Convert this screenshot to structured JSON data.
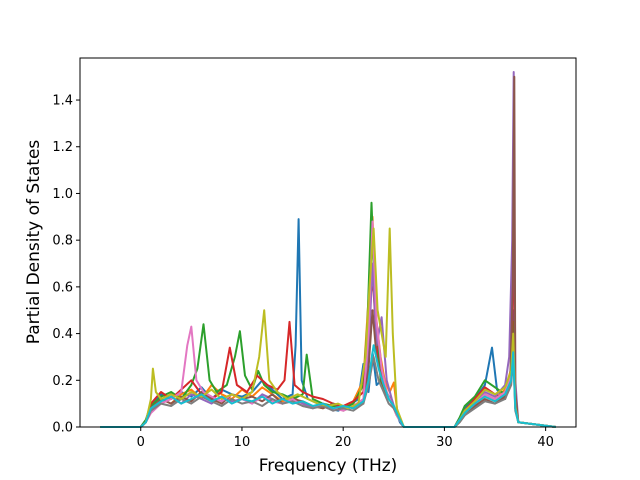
{
  "chart_data": {
    "type": "line",
    "title": "",
    "xlabel": "Frequency (THz)",
    "ylabel": "Partial Density of States",
    "xlim": [
      -6,
      43
    ],
    "ylim": [
      0,
      1.58
    ],
    "xticks": [
      0,
      10,
      20,
      30,
      40
    ],
    "yticks": [
      0.0,
      0.2,
      0.4,
      0.6,
      0.8,
      1.0,
      1.2,
      1.4
    ],
    "xtick_labels": [
      "0",
      "10",
      "20",
      "30",
      "40"
    ],
    "ytick_labels": [
      "0.0",
      "0.2",
      "0.4",
      "0.6",
      "0.8",
      "1.0",
      "1.2",
      "1.4"
    ],
    "grid": false,
    "legend": "none",
    "series_colors": [
      "#1f77b4",
      "#ff7f0e",
      "#2ca02c",
      "#d62728",
      "#9467bd",
      "#8c564b",
      "#e377c2",
      "#7f7f7f",
      "#bcbd22",
      "#17becf"
    ],
    "series": [
      {
        "color": "#1f77b4",
        "x": [
          -4,
          -0.5,
          0.0,
          0.5,
          1.0,
          2.0,
          3.0,
          4.0,
          5.0,
          6.0,
          7.0,
          8.0,
          9.0,
          10.0,
          11.0,
          12.0,
          13.0,
          14.0,
          15.0,
          15.3,
          15.6,
          15.9,
          16.5,
          17.5,
          18.5,
          19.5,
          20.5,
          21.5,
          22.0,
          22.5,
          22.9,
          23.3,
          23.8,
          24.3,
          24.8,
          25.3,
          25.6,
          26,
          31,
          31.5,
          32,
          33,
          34,
          34.7,
          35.2,
          36,
          36.6,
          36.8,
          37.0,
          37.3,
          41
        ],
        "y": [
          0,
          0,
          0,
          0.03,
          0.1,
          0.14,
          0.12,
          0.15,
          0.13,
          0.17,
          0.12,
          0.16,
          0.14,
          0.13,
          0.15,
          0.2,
          0.16,
          0.12,
          0.14,
          0.35,
          0.89,
          0.2,
          0.12,
          0.1,
          0.08,
          0.07,
          0.09,
          0.12,
          0.27,
          0.15,
          0.32,
          0.18,
          0.2,
          0.14,
          0.1,
          0.06,
          0.02,
          0,
          0,
          0.04,
          0.08,
          0.12,
          0.18,
          0.34,
          0.16,
          0.12,
          0.2,
          0.5,
          0.1,
          0.02,
          0
        ]
      },
      {
        "color": "#ff7f0e",
        "x": [
          -4,
          -0.5,
          0.0,
          0.5,
          1.0,
          2.0,
          3.0,
          4.0,
          5.0,
          6.0,
          7.0,
          8.0,
          9.0,
          10.0,
          11.0,
          12.0,
          13.0,
          14.0,
          15.0,
          16.0,
          17.0,
          18.0,
          19.0,
          20.0,
          21.0,
          22.0,
          22.5,
          22.9,
          23.3,
          23.7,
          24.1,
          24.6,
          25.0,
          25.4,
          26,
          31,
          31.5,
          32,
          33,
          34,
          35,
          36,
          36.6,
          36.8,
          37.0,
          37.3,
          41
        ],
        "y": [
          0,
          0,
          0,
          0.02,
          0.08,
          0.12,
          0.1,
          0.14,
          0.16,
          0.12,
          0.18,
          0.14,
          0.12,
          0.16,
          0.13,
          0.17,
          0.14,
          0.11,
          0.13,
          0.1,
          0.09,
          0.08,
          0.1,
          0.08,
          0.11,
          0.2,
          0.55,
          0.9,
          0.45,
          0.3,
          0.2,
          0.15,
          0.19,
          0.05,
          0,
          0,
          0.03,
          0.06,
          0.1,
          0.14,
          0.12,
          0.16,
          0.25,
          0.4,
          0.08,
          0.02,
          0
        ]
      },
      {
        "color": "#2ca02c",
        "x": [
          -4,
          -0.5,
          0.0,
          0.5,
          1.0,
          2.0,
          3.0,
          4.0,
          5.0,
          5.6,
          6.2,
          6.8,
          7.5,
          8.5,
          9.3,
          9.8,
          10.3,
          11.0,
          11.6,
          12.2,
          13.0,
          14.0,
          15.0,
          16.0,
          16.4,
          17.0,
          18.0,
          19.0,
          20.0,
          21.0,
          22.0,
          22.4,
          22.8,
          23.2,
          23.7,
          24.2,
          24.7,
          25.2,
          26,
          31,
          31.5,
          32,
          33,
          34,
          35,
          36,
          36.6,
          36.8,
          37.0,
          37.3,
          41
        ],
        "y": [
          0,
          0,
          0,
          0.03,
          0.09,
          0.13,
          0.15,
          0.12,
          0.18,
          0.25,
          0.44,
          0.2,
          0.15,
          0.18,
          0.3,
          0.41,
          0.22,
          0.16,
          0.24,
          0.18,
          0.15,
          0.14,
          0.12,
          0.14,
          0.31,
          0.12,
          0.1,
          0.09,
          0.08,
          0.1,
          0.18,
          0.45,
          0.96,
          0.5,
          0.2,
          0.15,
          0.12,
          0.06,
          0,
          0,
          0.04,
          0.09,
          0.13,
          0.2,
          0.17,
          0.14,
          0.22,
          0.45,
          0.1,
          0.02,
          0
        ]
      },
      {
        "color": "#d62728",
        "x": [
          -4,
          -0.5,
          0.0,
          0.5,
          1.0,
          2.0,
          3.0,
          4.0,
          5.0,
          6.0,
          7.0,
          8.0,
          8.8,
          9.5,
          10.5,
          11.5,
          12.5,
          13.5,
          14.2,
          14.7,
          15.2,
          16.0,
          17.0,
          18.0,
          19.0,
          20.0,
          21.0,
          22.0,
          22.4,
          22.7,
          23.0,
          23.4,
          23.8,
          24.3,
          24.8,
          25.3,
          26,
          31,
          31.5,
          32,
          33,
          34,
          35,
          36,
          36.6,
          36.8,
          37.0,
          37.3,
          41
        ],
        "y": [
          0,
          0,
          0,
          0.02,
          0.1,
          0.15,
          0.12,
          0.16,
          0.2,
          0.14,
          0.12,
          0.15,
          0.34,
          0.18,
          0.15,
          0.22,
          0.18,
          0.16,
          0.2,
          0.45,
          0.18,
          0.15,
          0.13,
          0.12,
          0.1,
          0.09,
          0.11,
          0.15,
          0.35,
          0.62,
          0.58,
          0.28,
          0.2,
          0.14,
          0.1,
          0.05,
          0,
          0,
          0.03,
          0.07,
          0.12,
          0.17,
          0.14,
          0.12,
          0.2,
          0.9,
          0.12,
          0.02,
          0
        ]
      },
      {
        "color": "#9467bd",
        "x": [
          -4,
          -0.5,
          0.0,
          0.5,
          1.0,
          2.0,
          3.0,
          4.0,
          5.0,
          6.0,
          7.0,
          8.0,
          9.0,
          10.0,
          11.0,
          12.0,
          13.0,
          14.0,
          15.0,
          16.0,
          17.0,
          18.0,
          19.0,
          20.0,
          21.0,
          22.0,
          22.5,
          22.9,
          23.3,
          23.8,
          24.3,
          24.8,
          25.3,
          26,
          31,
          31.5,
          32,
          33,
          34,
          35,
          36,
          36.4,
          36.7,
          36.85,
          37.0,
          37.3,
          41
        ],
        "y": [
          0,
          0,
          0,
          0.02,
          0.07,
          0.11,
          0.13,
          0.1,
          0.14,
          0.12,
          0.1,
          0.13,
          0.11,
          0.12,
          0.1,
          0.14,
          0.12,
          0.1,
          0.12,
          0.1,
          0.08,
          0.1,
          0.07,
          0.09,
          0.08,
          0.12,
          0.3,
          0.7,
          0.35,
          0.47,
          0.2,
          0.12,
          0.05,
          0,
          0,
          0.03,
          0.06,
          0.1,
          0.15,
          0.13,
          0.18,
          0.3,
          0.8,
          1.52,
          0.2,
          0.02,
          0
        ]
      },
      {
        "color": "#8c564b",
        "x": [
          -4,
          -0.5,
          0.0,
          0.5,
          1.0,
          2.0,
          3.0,
          4.0,
          5.0,
          6.0,
          7.0,
          8.0,
          9.0,
          10.0,
          11.0,
          12.0,
          13.0,
          14.0,
          15.0,
          16.0,
          17.0,
          18.0,
          19.0,
          20.0,
          21.0,
          22.0,
          22.5,
          22.9,
          23.3,
          23.8,
          24.3,
          24.8,
          25.3,
          26,
          31,
          31.5,
          32,
          33,
          34,
          35,
          36,
          36.5,
          36.75,
          36.9,
          37.0,
          37.3,
          41
        ],
        "y": [
          0,
          0,
          0,
          0.02,
          0.08,
          0.12,
          0.1,
          0.13,
          0.11,
          0.15,
          0.12,
          0.1,
          0.14,
          0.12,
          0.13,
          0.11,
          0.14,
          0.1,
          0.12,
          0.11,
          0.09,
          0.08,
          0.1,
          0.07,
          0.09,
          0.1,
          0.25,
          0.5,
          0.3,
          0.22,
          0.15,
          0.1,
          0.05,
          0,
          0,
          0.02,
          0.05,
          0.09,
          0.12,
          0.1,
          0.13,
          0.2,
          0.6,
          1.5,
          0.15,
          0.02,
          0
        ]
      },
      {
        "color": "#e377c2",
        "x": [
          -4,
          -0.5,
          0.0,
          0.5,
          1.0,
          2.0,
          3.0,
          4.0,
          4.6,
          5.0,
          5.5,
          6.2,
          7.0,
          8.0,
          9.0,
          10.0,
          11.0,
          12.0,
          13.0,
          14.0,
          15.0,
          16.0,
          17.0,
          18.0,
          19.0,
          20.0,
          21.0,
          22.0,
          22.5,
          22.9,
          23.3,
          23.8,
          24.3,
          24.8,
          25.3,
          26,
          31,
          31.5,
          32,
          33,
          34,
          35,
          36,
          36.6,
          36.8,
          37.0,
          37.3,
          41
        ],
        "y": [
          0,
          0,
          0,
          0.02,
          0.06,
          0.1,
          0.12,
          0.15,
          0.35,
          0.43,
          0.2,
          0.15,
          0.13,
          0.11,
          0.14,
          0.12,
          0.1,
          0.13,
          0.11,
          0.1,
          0.12,
          0.09,
          0.08,
          0.1,
          0.08,
          0.07,
          0.09,
          0.12,
          0.4,
          0.88,
          0.45,
          0.25,
          0.15,
          0.1,
          0.05,
          0,
          0,
          0.03,
          0.06,
          0.1,
          0.14,
          0.12,
          0.15,
          0.22,
          0.35,
          0.08,
          0.02,
          0
        ]
      },
      {
        "color": "#7f7f7f",
        "x": [
          -4,
          -0.5,
          0.0,
          0.5,
          1.0,
          2.0,
          3.0,
          4.0,
          5.0,
          6.0,
          7.0,
          8.0,
          9.0,
          10.0,
          11.0,
          12.0,
          13.0,
          14.0,
          15.0,
          16.0,
          17.0,
          18.0,
          19.0,
          20.0,
          21.0,
          22.0,
          22.5,
          23.0,
          23.5,
          24.0,
          24.5,
          25.0,
          25.5,
          26,
          31,
          31.5,
          32,
          33,
          34,
          35,
          36,
          36.6,
          36.8,
          37.0,
          37.3,
          41
        ],
        "y": [
          0,
          0,
          0,
          0.02,
          0.07,
          0.1,
          0.09,
          0.12,
          0.1,
          0.13,
          0.11,
          0.09,
          0.12,
          0.1,
          0.11,
          0.09,
          0.12,
          0.1,
          0.11,
          0.09,
          0.08,
          0.09,
          0.07,
          0.08,
          0.07,
          0.1,
          0.18,
          0.3,
          0.2,
          0.15,
          0.1,
          0.08,
          0.04,
          0,
          0,
          0.02,
          0.05,
          0.08,
          0.11,
          0.1,
          0.12,
          0.18,
          0.3,
          0.07,
          0.02,
          0
        ]
      },
      {
        "color": "#bcbd22",
        "x": [
          -4,
          -0.5,
          0.0,
          0.5,
          1.0,
          1.2,
          1.5,
          2.0,
          3.0,
          4.0,
          5.0,
          6.0,
          7.0,
          8.0,
          9.0,
          10.0,
          11.0,
          11.7,
          12.2,
          12.7,
          13.5,
          14.5,
          15.5,
          16.5,
          17.5,
          18.5,
          19.5,
          20.5,
          21.5,
          22.2,
          22.6,
          23.0,
          23.4,
          23.8,
          24.2,
          24.6,
          24.9,
          25.3,
          26,
          31,
          31.5,
          32,
          33,
          34,
          35,
          36,
          36.6,
          36.8,
          37.0,
          37.3,
          41
        ],
        "y": [
          0,
          0,
          0,
          0.02,
          0.12,
          0.25,
          0.15,
          0.12,
          0.14,
          0.12,
          0.15,
          0.13,
          0.16,
          0.12,
          0.14,
          0.12,
          0.15,
          0.3,
          0.5,
          0.2,
          0.15,
          0.12,
          0.14,
          0.12,
          0.1,
          0.09,
          0.1,
          0.08,
          0.1,
          0.3,
          0.6,
          0.85,
          0.5,
          0.4,
          0.3,
          0.85,
          0.4,
          0.08,
          0,
          0,
          0.03,
          0.07,
          0.11,
          0.16,
          0.14,
          0.17,
          0.24,
          0.4,
          0.09,
          0.02,
          0
        ]
      },
      {
        "color": "#17becf",
        "x": [
          -4,
          -0.5,
          0.0,
          0.5,
          1.0,
          2.0,
          3.0,
          4.0,
          5.0,
          6.0,
          7.0,
          8.0,
          9.0,
          10.0,
          11.0,
          12.0,
          13.0,
          14.0,
          15.0,
          16.0,
          17.0,
          18.0,
          19.0,
          20.0,
          21.0,
          22.0,
          22.5,
          23.0,
          23.5,
          24.0,
          24.5,
          25.0,
          25.5,
          26,
          31,
          31.5,
          32,
          33,
          34,
          35,
          36,
          36.6,
          36.8,
          37.0,
          37.3,
          41
        ],
        "y": [
          0,
          0,
          0,
          0.02,
          0.08,
          0.11,
          0.13,
          0.1,
          0.12,
          0.14,
          0.11,
          0.13,
          0.1,
          0.12,
          0.11,
          0.13,
          0.1,
          0.12,
          0.1,
          0.11,
          0.09,
          0.1,
          0.08,
          0.09,
          0.08,
          0.11,
          0.2,
          0.35,
          0.25,
          0.18,
          0.12,
          0.09,
          0.04,
          0,
          0,
          0.03,
          0.06,
          0.1,
          0.13,
          0.11,
          0.14,
          0.2,
          0.32,
          0.08,
          0.02,
          0
        ]
      }
    ]
  }
}
